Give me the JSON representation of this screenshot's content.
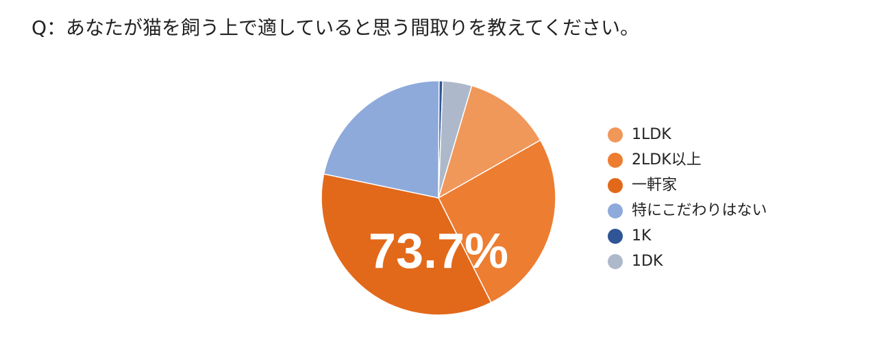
{
  "chart_data": {
    "type": "pie",
    "title": "Q：あなたが猫を飼う上で適していると思う間取りを教えてください。",
    "annotation": "73.7%",
    "categories": [
      "1LDK",
      "2LDK以上",
      "一軒家",
      "特にこだわりはない",
      "1K",
      "1DK"
    ],
    "values": [
      12.2,
      25.8,
      35.7,
      21.8,
      0.5,
      4.0
    ],
    "colors": [
      "#f0975a",
      "#ed7d31",
      "#e2691a",
      "#8eaadb",
      "#2f5597",
      "#adb9ca"
    ],
    "legend": "right"
  }
}
